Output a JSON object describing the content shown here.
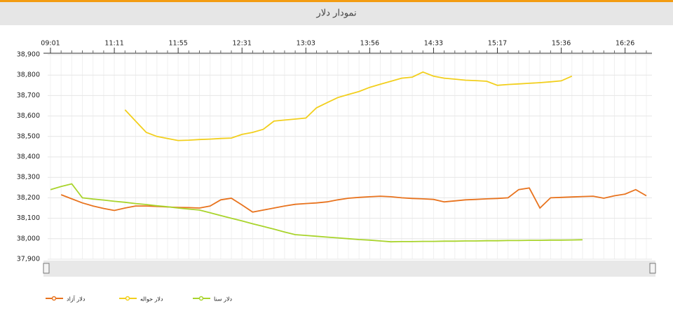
{
  "chart_data": {
    "type": "line",
    "title": "نمودار دلار",
    "categories": [
      "09:01",
      null,
      null,
      null,
      null,
      null,
      "11:11",
      null,
      null,
      null,
      null,
      null,
      "11:55",
      null,
      null,
      null,
      null,
      null,
      "12:31",
      null,
      null,
      null,
      null,
      null,
      "13:03",
      null,
      null,
      null,
      null,
      null,
      "13:56",
      null,
      null,
      null,
      null,
      null,
      "14:33",
      null,
      null,
      null,
      null,
      null,
      "15:17",
      null,
      null,
      null,
      null,
      null,
      "15:36",
      null,
      null,
      null,
      null,
      null,
      "16:26",
      null,
      null
    ],
    "ylim": [
      37900,
      38900
    ],
    "yticks": [
      {
        "value": 37900,
        "label": "37,900"
      },
      {
        "value": 38000,
        "label": "38,000"
      },
      {
        "value": 38100,
        "label": "38,100"
      },
      {
        "value": 38200,
        "label": "38,200"
      },
      {
        "value": 38300,
        "label": "38,300"
      },
      {
        "value": 38400,
        "label": "38,400"
      },
      {
        "value": 38500,
        "label": "38,500"
      },
      {
        "value": 38600,
        "label": "38,600"
      },
      {
        "value": 38700,
        "label": "38,700"
      },
      {
        "value": 38800,
        "label": "38,800"
      },
      {
        "value": 38900,
        "label": "38,900"
      }
    ],
    "grid": true,
    "series": [
      {
        "name": "دلار آزاد",
        "color": "#e8731e",
        "values": [
          null,
          38215,
          38195,
          38175,
          38160,
          38148,
          38138,
          38150,
          38160,
          38160,
          38158,
          38155,
          38153,
          38152,
          38150,
          38160,
          38190,
          38198,
          38165,
          38130,
          38140,
          38150,
          38160,
          38168,
          38172,
          38175,
          38180,
          38190,
          38198,
          38202,
          38205,
          38208,
          38205,
          38200,
          38197,
          38195,
          38192,
          38180,
          38185,
          38190,
          38192,
          38195,
          38197,
          38200,
          38240,
          38248,
          38150,
          38200,
          38202,
          38204,
          38206,
          38208,
          38198,
          38210,
          38218,
          38240,
          38210
        ]
      },
      {
        "name": "دلار حواله",
        "color": "#f2cf1d",
        "values": [
          null,
          null,
          null,
          null,
          null,
          null,
          null,
          38630,
          38575,
          38520,
          38500,
          38490,
          38480,
          38482,
          38485,
          38487,
          38490,
          38492,
          38510,
          38520,
          38535,
          38575,
          38580,
          38585,
          38590,
          38640,
          38665,
          38690,
          38705,
          38720,
          38740,
          38755,
          38770,
          38785,
          38790,
          38815,
          38795,
          38785,
          38780,
          38775,
          38773,
          38770,
          38750,
          38754,
          38757,
          38760,
          38763,
          38767,
          38772,
          38795,
          null,
          null,
          null,
          null,
          null,
          null,
          null
        ]
      },
      {
        "name": "دلار سنا",
        "color": "#a9d42c",
        "values": [
          38240,
          38255,
          38268,
          38200,
          38194,
          38189,
          38183,
          38178,
          38172,
          38167,
          38161,
          38156,
          38150,
          38145,
          38140,
          38127,
          38113,
          38100,
          38087,
          38073,
          38060,
          38047,
          38033,
          38020,
          38016,
          38012,
          38008,
          38004,
          38000,
          37996,
          37993,
          37989,
          37985,
          37986,
          37986,
          37987,
          37987,
          37988,
          37988,
          37989,
          37989,
          37990,
          37990,
          37991,
          37991,
          37992,
          37992,
          37993,
          37993,
          37994,
          37995,
          null,
          null,
          null,
          null,
          null,
          null
        ]
      }
    ]
  }
}
